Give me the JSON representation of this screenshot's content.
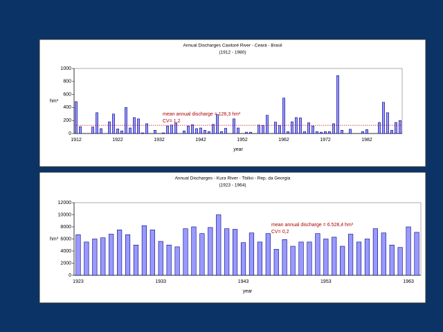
{
  "chart_data": [
    {
      "type": "bar",
      "title": "Annual Discharges Caxitoré River - Ceará - Brasil",
      "subtitle": "(1912 - 1980)",
      "x_label": "year",
      "y_label": "hm³",
      "annotations": [
        "mean annual discharge = 126,3 hm³",
        "CV= 1,2"
      ],
      "mean": 126.3,
      "mean_color": "#cc0000",
      "color": "#9999ff",
      "edge_color": "#000080",
      "categories": [
        "1912",
        null,
        null,
        null,
        null,
        null,
        null,
        null,
        null,
        null,
        "1922",
        null,
        null,
        null,
        null,
        null,
        null,
        null,
        null,
        null,
        "1932",
        null,
        null,
        null,
        null,
        null,
        null,
        null,
        null,
        null,
        "1942",
        null,
        null,
        null,
        null,
        null,
        null,
        null,
        null,
        null,
        "1952",
        null,
        null,
        null,
        null,
        null,
        null,
        null,
        null,
        null,
        "1962",
        null,
        null,
        null,
        null,
        null,
        null,
        null,
        null,
        null,
        "1972",
        null,
        null,
        null,
        null,
        null,
        null,
        null,
        null,
        null,
        "1982",
        null,
        null,
        null,
        null,
        null,
        null,
        null,
        null
      ],
      "values": [
        490,
        105,
        0,
        0,
        100,
        320,
        75,
        0,
        180,
        300,
        70,
        40,
        400,
        85,
        245,
        225,
        10,
        150,
        0,
        50,
        0,
        10,
        115,
        130,
        160,
        0,
        40,
        115,
        135,
        75,
        85,
        50,
        30,
        140,
        290,
        30,
        80,
        0,
        225,
        85,
        0,
        20,
        20,
        0,
        130,
        125,
        280,
        0,
        175,
        125,
        545,
        30,
        180,
        245,
        240,
        30,
        165,
        115,
        30,
        20,
        30,
        30,
        150,
        890,
        50,
        0,
        65,
        0,
        0,
        30,
        60,
        0,
        0,
        170,
        480,
        320,
        50,
        170,
        200
      ],
      "ylim": [
        0,
        1000
      ],
      "yticks": [
        0,
        200,
        400,
        600,
        800,
        1000
      ]
    },
    {
      "type": "bar",
      "title": "Annual Discharges - Kura River - Tbilisi - Rep. da Georgia",
      "subtitle": "(1923 - 1964)",
      "x_label": "year",
      "y_label": "hm³",
      "annotations": [
        "mean annual discharge = 6.528,4 hm³",
        "CV= 0,2"
      ],
      "color": "#9999ff",
      "edge_color": "#000080",
      "categories": [
        "1923",
        null,
        null,
        null,
        null,
        null,
        null,
        null,
        null,
        null,
        "1933",
        null,
        null,
        null,
        null,
        null,
        null,
        null,
        null,
        null,
        "1943",
        null,
        null,
        null,
        null,
        null,
        null,
        null,
        null,
        null,
        "1953",
        null,
        null,
        null,
        null,
        null,
        null,
        null,
        null,
        null,
        "1963",
        null
      ],
      "values": [
        6700,
        5500,
        6000,
        6200,
        6800,
        7500,
        6700,
        5000,
        8200,
        7500,
        5600,
        5000,
        4700,
        7700,
        8000,
        6900,
        7900,
        10000,
        7700,
        7600,
        5400,
        7000,
        5500,
        6900,
        4300,
        5900,
        4800,
        5500,
        5500,
        6900,
        6000,
        6300,
        4800,
        6800,
        5500,
        6000,
        7700,
        7000,
        5000,
        4600,
        8000,
        7100
      ],
      "ylim": [
        0,
        12000
      ],
      "yticks": [
        0,
        2000,
        4000,
        6000,
        8000,
        10000,
        12000
      ]
    }
  ]
}
